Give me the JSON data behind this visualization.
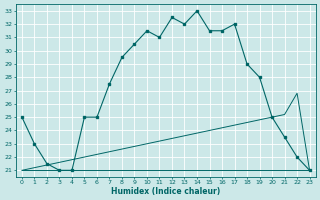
{
  "xlabel": "Humidex (Indice chaleur)",
  "xlim": [
    -0.5,
    23.5
  ],
  "ylim": [
    20.5,
    33.5
  ],
  "xticks": [
    0,
    1,
    2,
    3,
    4,
    5,
    6,
    7,
    8,
    9,
    10,
    11,
    12,
    13,
    14,
    15,
    16,
    17,
    18,
    19,
    20,
    21,
    22,
    23
  ],
  "yticks": [
    21,
    22,
    23,
    24,
    25,
    26,
    27,
    28,
    29,
    30,
    31,
    32,
    33
  ],
  "bg_color": "#cce8e8",
  "line_color": "#006666",
  "grid_color": "#ffffff",
  "line1_x": [
    0,
    1,
    2,
    3,
    4,
    5,
    6,
    7,
    8,
    9,
    10,
    11,
    12,
    13,
    14,
    15,
    16,
    17,
    18,
    19,
    20,
    21,
    22,
    23
  ],
  "line1_y": [
    25,
    23,
    21.5,
    21,
    21,
    25,
    25,
    27.5,
    29.5,
    30.5,
    31.5,
    31,
    32.5,
    32,
    33,
    31.5,
    31.5,
    32,
    29,
    28,
    25,
    23.5,
    22,
    21
  ],
  "line2_x": [
    0,
    1,
    2,
    3,
    4,
    5,
    6,
    7,
    8,
    9,
    10,
    11,
    12,
    13,
    14,
    15,
    16,
    17,
    18,
    19,
    23
  ],
  "line2_y": [
    21,
    21,
    21,
    21,
    21,
    21,
    21,
    21,
    21,
    21,
    21,
    21,
    21,
    21,
    21,
    21,
    21,
    21,
    21,
    21,
    21
  ],
  "line3_x": [
    0,
    1,
    2,
    3,
    4,
    5,
    6,
    7,
    8,
    9,
    10,
    11,
    12,
    13,
    14,
    15,
    16,
    17,
    18,
    19,
    20,
    21,
    22,
    23
  ],
  "line3_y": [
    21,
    21.2,
    21.4,
    21.6,
    21.8,
    22.0,
    22.2,
    22.4,
    22.6,
    22.8,
    23.0,
    23.2,
    23.4,
    23.6,
    23.8,
    24.0,
    24.2,
    24.4,
    24.6,
    24.8,
    25.0,
    25.2,
    26.8,
    21
  ],
  "figsize": [
    3.2,
    2.0
  ],
  "dpi": 100
}
